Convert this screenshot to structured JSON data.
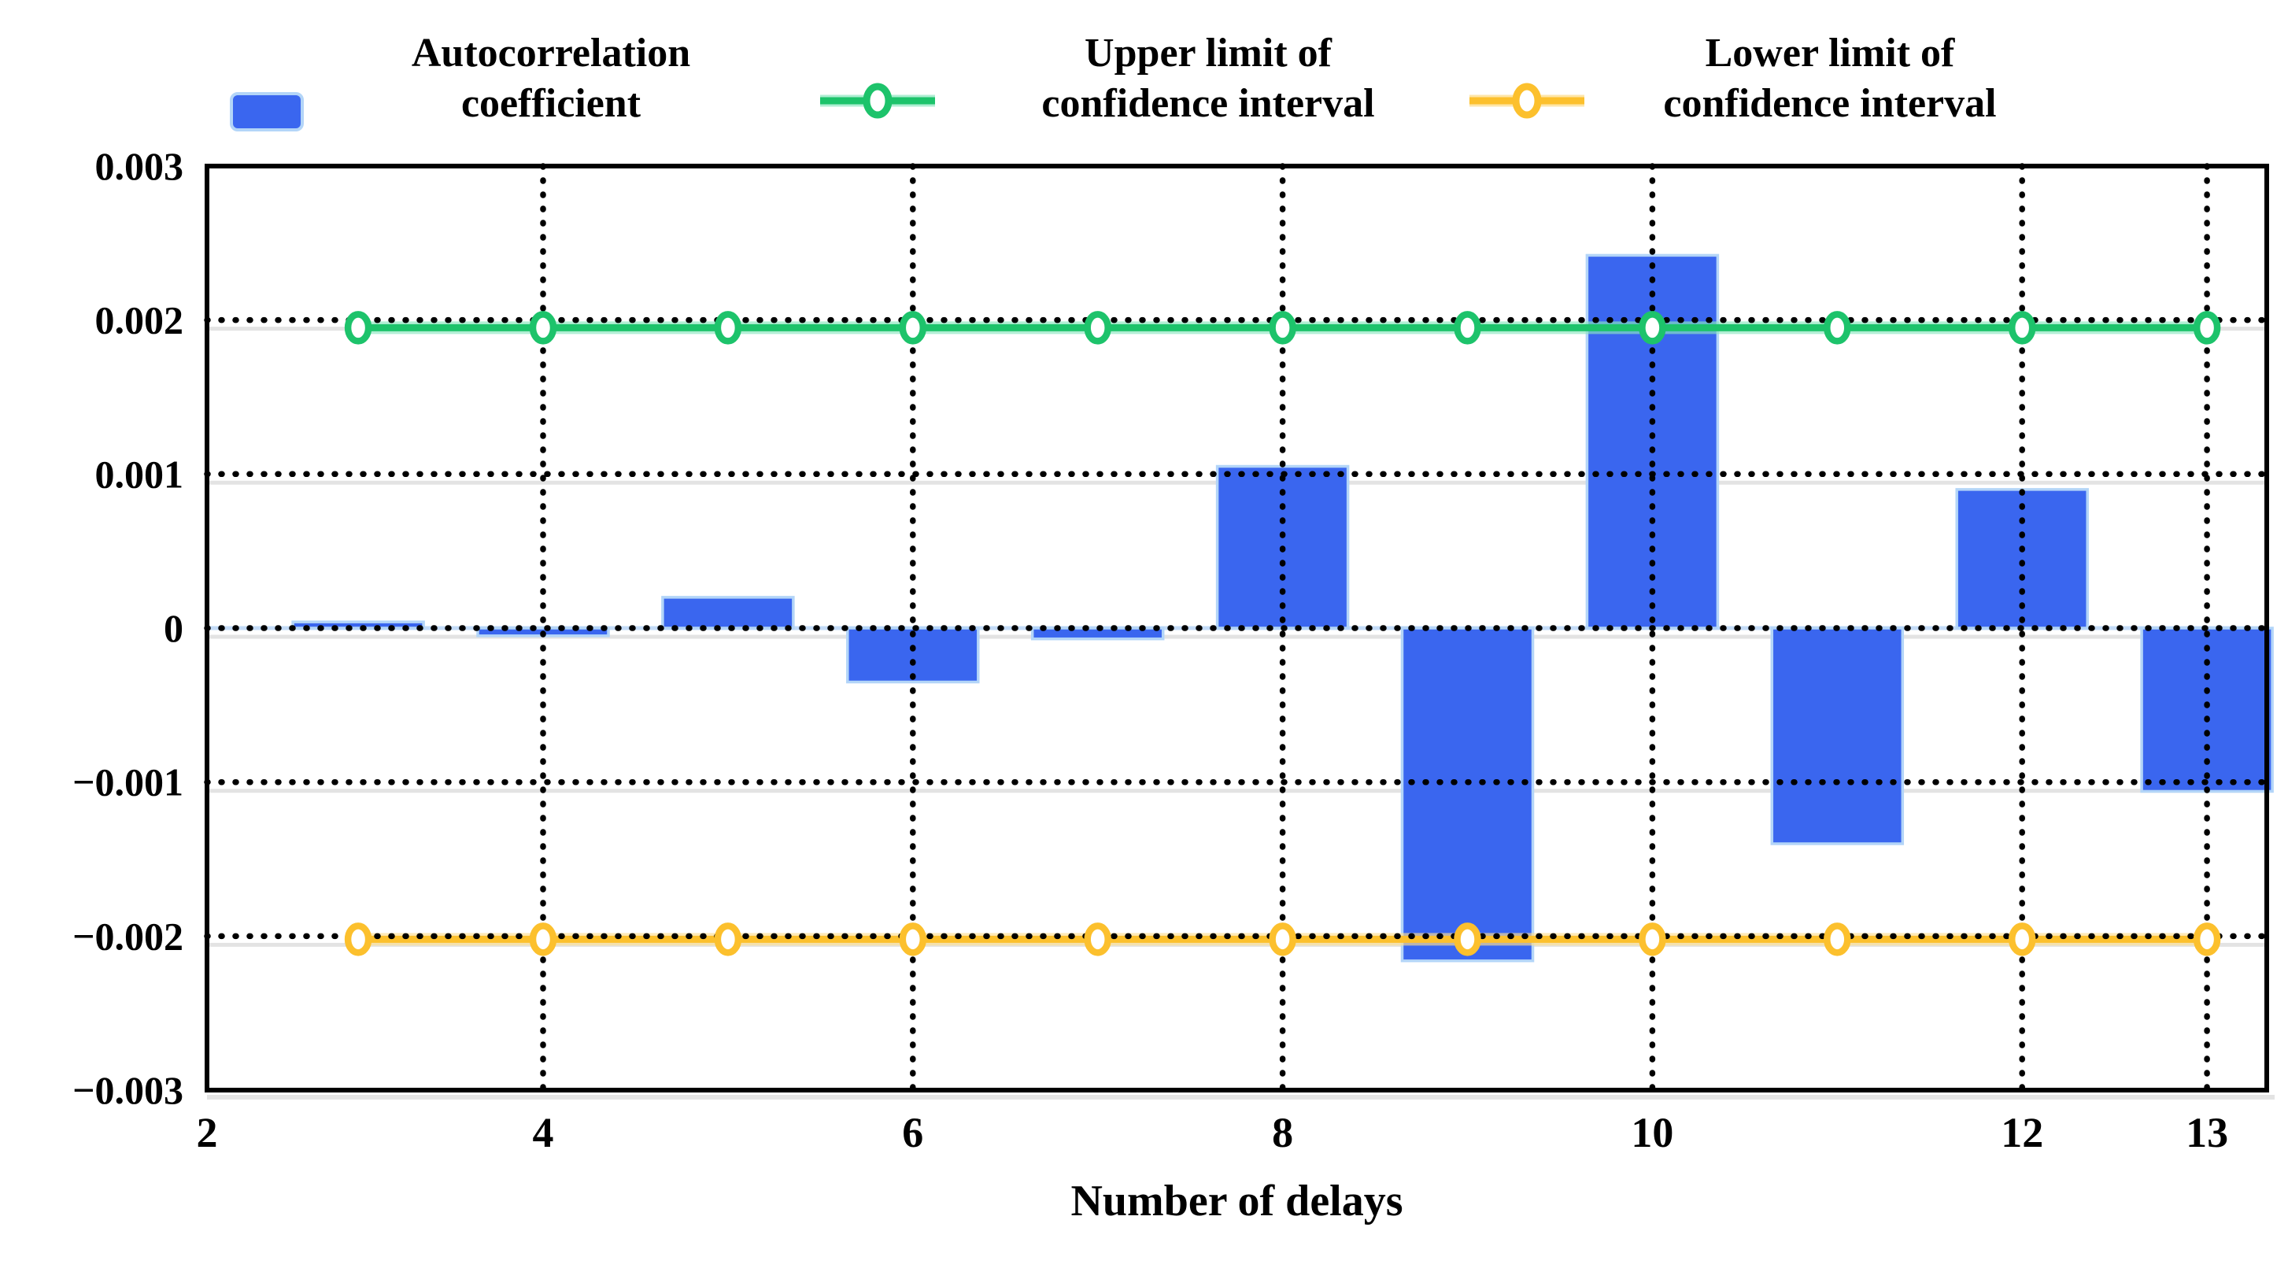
{
  "legend": {
    "items": [
      {
        "id": "autocorrelation",
        "line1": "Autocorrelation",
        "line2": "coefficient",
        "marker": "blue-rounded-square"
      },
      {
        "id": "upper-ci",
        "line1": "Upper limit of",
        "line2": "confidence interval",
        "marker": "green-open-circle-on-line"
      },
      {
        "id": "lower-ci",
        "line1": "Lower limit of",
        "line2": "confidence interval",
        "marker": "orange-open-circle-on-line"
      }
    ]
  },
  "colors": {
    "bar": "#3A66EF",
    "bar_edge": "#B3D5F8",
    "upper_ci": "#1DC36B",
    "upper_ci_glow": "#8BE7C0",
    "lower_ci": "#FCC02D",
    "lower_ci_glow": "#FEE093",
    "grid_dots": "#000000",
    "ghost_line": "#E3E3E3",
    "zero_line": "#C3DBF7",
    "frame": "#000000",
    "text": "#000000",
    "background": "#FFFFFF"
  },
  "chart_data": {
    "type": "bar",
    "title": "",
    "xlabel": "Number of delays",
    "ylabel": "",
    "xlim": [
      2,
      13.4
    ],
    "ylim": [
      -0.003,
      0.003
    ],
    "x_ticks": [
      2,
      4,
      6,
      8,
      10,
      12,
      13
    ],
    "x_tick_labels": [
      "2",
      "4",
      "6",
      "8",
      "10",
      "12",
      "13"
    ],
    "y_ticks": [
      0.003,
      0.002,
      0.001,
      0,
      -0.001,
      -0.002,
      -0.003
    ],
    "y_tick_labels": [
      "0.003",
      "0.002",
      "0.001",
      "0",
      "−0.001",
      "−0.002",
      "−0.003"
    ],
    "grid": {
      "style": "dotted",
      "color": "#000000",
      "x_lines": [
        4,
        6,
        8,
        10,
        12,
        13
      ],
      "y_lines": [
        0.002,
        0.001,
        0,
        -0.001,
        -0.002
      ]
    },
    "legend_position": "top",
    "categories": [
      3,
      4,
      5,
      6,
      7,
      8,
      9,
      10,
      11,
      12,
      13
    ],
    "series": [
      {
        "name": "Autocorrelation coefficient",
        "type": "bar",
        "color": "#3A66EF",
        "edge_color": "#B3D5F8",
        "values": [
          4e-05,
          -5e-05,
          0.0002,
          -0.00035,
          -7e-05,
          0.00105,
          -0.00216,
          0.00242,
          -0.0014,
          0.0009,
          -0.00106
        ]
      },
      {
        "name": "Upper limit of confidence interval",
        "type": "line",
        "color": "#1DC36B",
        "marker": "open-circle",
        "values": [
          0.00195,
          0.00195,
          0.00195,
          0.00195,
          0.00195,
          0.00195,
          0.00195,
          0.00195,
          0.00195,
          0.00195,
          0.00195
        ]
      },
      {
        "name": "Lower limit of confidence interval",
        "type": "line",
        "color": "#FCC02D",
        "marker": "open-circle",
        "values": [
          -0.00202,
          -0.00202,
          -0.00202,
          -0.00202,
          -0.00202,
          -0.00202,
          -0.00202,
          -0.00202,
          -0.00202,
          -0.00202,
          -0.00202
        ]
      }
    ]
  }
}
